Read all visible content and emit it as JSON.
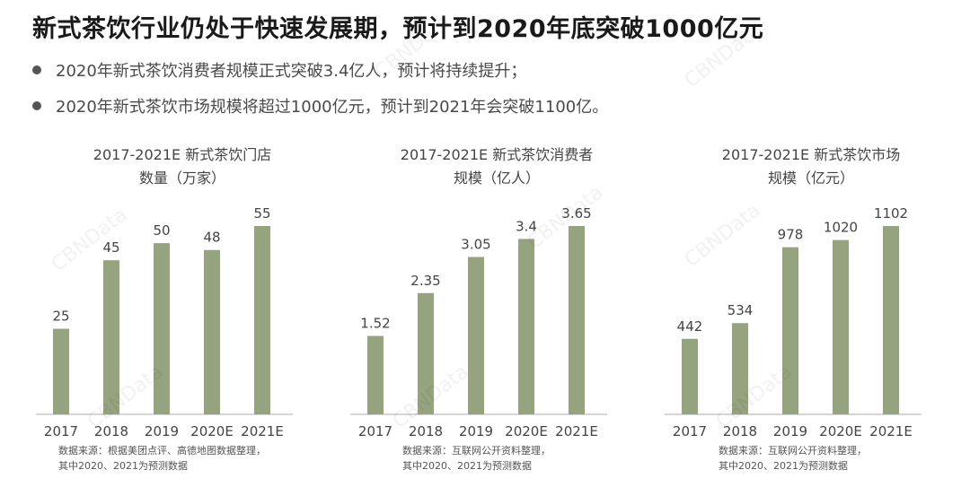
{
  "title": "新式茶饮行业仍处于快速发展期，预计到2020年底突破1000亿元",
  "bullets": [
    "2020年新式茶饮消费者规模正式突破3.4亿人，预计将持续提升；",
    "2020年新式茶饮市场规模将超过1000亿元，预计到2021年会突破1100亿。"
  ],
  "watermark_text": "CBNData",
  "colors": {
    "bar": "#96a37f",
    "axis": "#c8c8c8",
    "text": "#444444"
  },
  "chart_data": [
    {
      "type": "bar",
      "title_lines": [
        "2017-2021E 新式茶饮门店",
        "数量（万家）"
      ],
      "categories": [
        "2017",
        "2018",
        "2019",
        "2020E",
        "2021E"
      ],
      "values": [
        25,
        45,
        50,
        48,
        55
      ],
      "value_labels": [
        "25",
        "45",
        "50",
        "48",
        "55"
      ],
      "ylim": [
        0,
        55
      ],
      "source_lines": [
        "数据来源：根据美团点评、高德地图数据整理，",
        "其中2020、2021为预测数据"
      ]
    },
    {
      "type": "bar",
      "title_lines": [
        "2017-2021E 新式茶饮消费者",
        "规模（亿人）"
      ],
      "categories": [
        "2017",
        "2018",
        "2019",
        "2020E",
        "2021E"
      ],
      "values": [
        1.52,
        2.35,
        3.05,
        3.4,
        3.65
      ],
      "value_labels": [
        "1.52",
        "2.35",
        "3.05",
        "3.4",
        "3.65"
      ],
      "ylim": [
        0,
        3.65
      ],
      "source_lines": [
        "数据来源：互联网公开资料整理，",
        "其中2020、2021为预测数据"
      ]
    },
    {
      "type": "bar",
      "title_lines": [
        "2017-2021E 新式茶饮市场",
        "规模（亿元）"
      ],
      "categories": [
        "2017",
        "2018",
        "2019",
        "2020E",
        "2021E"
      ],
      "values": [
        442,
        534,
        978,
        1020,
        1102
      ],
      "value_labels": [
        "442",
        "534",
        "978",
        "1020",
        "1102"
      ],
      "ylim": [
        0,
        1102
      ],
      "source_lines": [
        "数据来源：互联网公开资料整理，",
        "其中2020、2021为预测数据"
      ]
    }
  ]
}
